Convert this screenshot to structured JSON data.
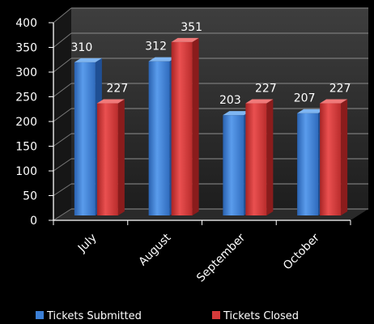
{
  "chart_data": {
    "type": "bar",
    "categories": [
      "July",
      "August",
      "September",
      "October"
    ],
    "series": [
      {
        "name": "Tickets Submitted",
        "values": [
          310,
          312,
          203,
          207
        ],
        "color": "#3b7fd6"
      },
      {
        "name": "Tickets Closed",
        "values": [
          227,
          351,
          227,
          227
        ],
        "color": "#d63a3a"
      }
    ],
    "ylim": [
      0,
      400
    ],
    "yticks": [
      "0",
      "50",
      "100",
      "150",
      "200",
      "250",
      "300",
      "350",
      "400"
    ],
    "grid": true,
    "legend_position": "bottom",
    "title": "",
    "xlabel": "",
    "ylabel": ""
  }
}
